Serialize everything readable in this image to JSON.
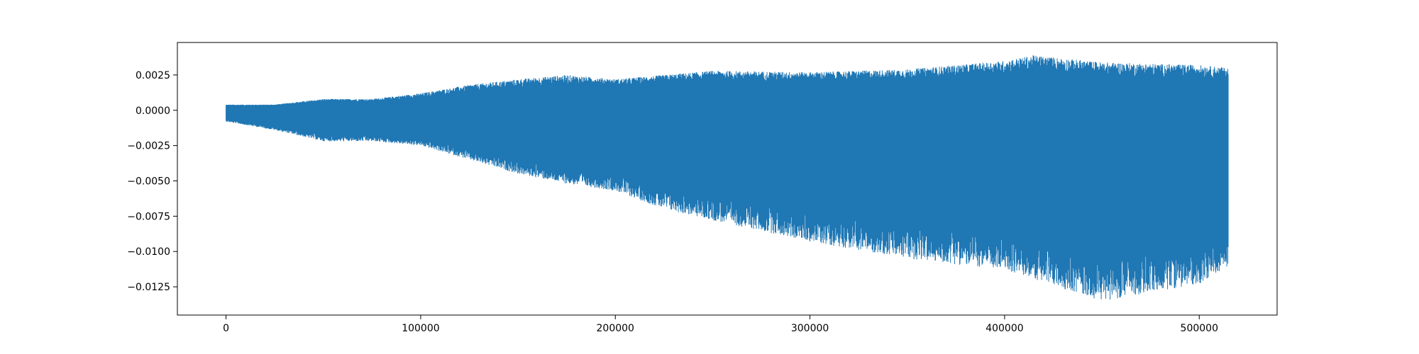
{
  "chart_data": {
    "type": "line",
    "title": "",
    "xlabel": "",
    "ylabel": "",
    "xlim": [
      -25000,
      540000
    ],
    "ylim": [
      -0.0145,
      0.0048
    ],
    "grid": false,
    "legend": false,
    "x_ticks": [
      {
        "value": 0,
        "label": "0"
      },
      {
        "value": 100000,
        "label": "100000"
      },
      {
        "value": 200000,
        "label": "200000"
      },
      {
        "value": 300000,
        "label": "300000"
      },
      {
        "value": 400000,
        "label": "400000"
      },
      {
        "value": 500000,
        "label": "500000"
      }
    ],
    "y_ticks": [
      {
        "value": 0.0025,
        "label": "0.0025"
      },
      {
        "value": 0.0,
        "label": "0.0000"
      },
      {
        "value": -0.0025,
        "label": "−0.0025"
      },
      {
        "value": -0.005,
        "label": "−0.0050"
      },
      {
        "value": -0.0075,
        "label": "−0.0075"
      },
      {
        "value": -0.01,
        "label": "−0.0100"
      },
      {
        "value": -0.0125,
        "label": "−0.0125"
      }
    ],
    "series": [
      {
        "color": "#1f77b4",
        "x_range": [
          0,
          515000
        ],
        "upper_envelope": {
          "x": [
            0,
            25000,
            50000,
            75000,
            100000,
            125000,
            150000,
            175000,
            200000,
            250000,
            300000,
            350000,
            400000,
            415000,
            450000,
            500000,
            515000
          ],
          "y": [
            0.0004,
            0.0004,
            0.0008,
            0.0008,
            0.0012,
            0.0018,
            0.0022,
            0.0025,
            0.0022,
            0.0028,
            0.0027,
            0.0029,
            0.0035,
            0.0039,
            0.0034,
            0.0032,
            0.003
          ]
        },
        "lower_envelope": {
          "x": [
            0,
            25000,
            50000,
            75000,
            100000,
            125000,
            150000,
            175000,
            200000,
            225000,
            250000,
            300000,
            350000,
            400000,
            450000,
            500000,
            515000
          ],
          "y": [
            -0.0008,
            -0.0014,
            -0.0022,
            -0.0022,
            -0.0025,
            -0.0035,
            -0.0045,
            -0.0052,
            -0.0057,
            -0.007,
            -0.0078,
            -0.0093,
            -0.0105,
            -0.0113,
            -0.0135,
            -0.0123,
            -0.011
          ]
        },
        "dense_band": {
          "x": [
            0,
            25000,
            50000,
            75000,
            100000,
            150000,
            200000,
            300000,
            400000,
            450000,
            515000
          ],
          "top": [
            0.0002,
            0.0003,
            0.0004,
            0.0004,
            0.0005,
            0.0008,
            0.001,
            0.0012,
            0.0012,
            0.001,
            0.001
          ],
          "bottom": [
            -0.0005,
            -0.0008,
            -0.0012,
            -0.0012,
            -0.0014,
            -0.0022,
            -0.003,
            -0.0042,
            -0.0055,
            -0.006,
            -0.006
          ]
        }
      }
    ]
  }
}
